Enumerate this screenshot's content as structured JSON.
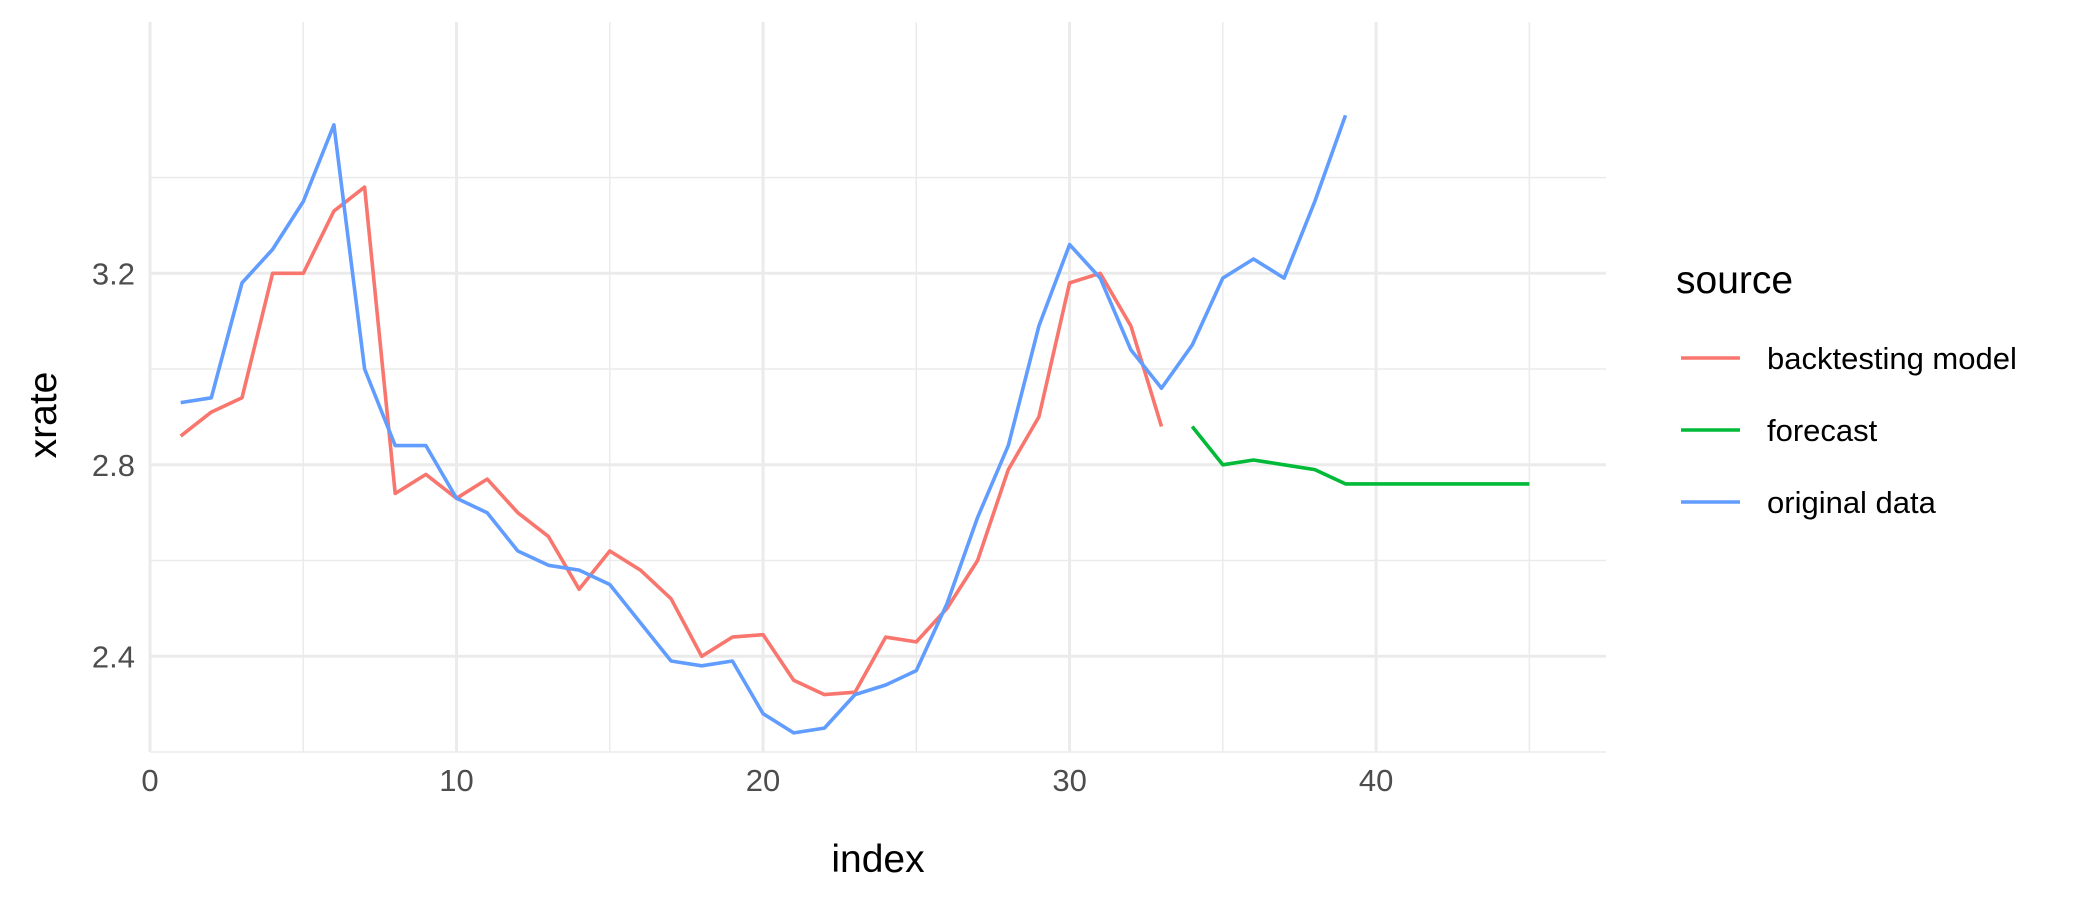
{
  "chart_data": {
    "type": "line",
    "xlabel": "index",
    "ylabel": "xrate",
    "xlim": [
      0,
      47.5
    ],
    "ylim": [
      2.2,
      3.725
    ],
    "x_ticks": [
      0,
      10,
      20,
      30,
      40
    ],
    "y_ticks": [
      2.4,
      2.8,
      3.2
    ],
    "x_ticks_labels": [
      "0",
      "10",
      "20",
      "30",
      "40"
    ],
    "y_ticks_labels": [
      "2.4",
      "2.8",
      "3.2"
    ],
    "grid": true,
    "legend": {
      "title": "source",
      "position": "right"
    },
    "series": [
      {
        "name": "backtesting model",
        "color": "#F8766D",
        "x": [
          1,
          2,
          3,
          4,
          5,
          6,
          7,
          8,
          9,
          10,
          11,
          12,
          13,
          14,
          15,
          16,
          17,
          18,
          19,
          20,
          21,
          22,
          23,
          24,
          25,
          26,
          27,
          28,
          29,
          30,
          31,
          32,
          33
        ],
        "values": [
          2.86,
          2.91,
          2.94,
          3.2,
          3.2,
          3.33,
          3.38,
          2.74,
          2.78,
          2.73,
          2.77,
          2.7,
          2.65,
          2.54,
          2.62,
          2.58,
          2.52,
          2.4,
          2.44,
          2.445,
          2.35,
          2.32,
          2.325,
          2.44,
          2.43,
          2.5,
          2.6,
          2.79,
          2.9,
          3.18,
          3.2,
          3.09,
          2.88
        ]
      },
      {
        "name": "forecast",
        "color": "#00BA38",
        "x": [
          34,
          35,
          36,
          37,
          38,
          39,
          40,
          41,
          42,
          43,
          44,
          45
        ],
        "values": [
          2.88,
          2.8,
          2.81,
          2.8,
          2.79,
          2.76,
          2.76,
          2.76,
          2.76,
          2.76,
          2.76,
          2.76
        ]
      },
      {
        "name": "original data",
        "color": "#619CFF",
        "x": [
          1,
          2,
          3,
          4,
          5,
          6,
          7,
          8,
          9,
          10,
          11,
          12,
          13,
          14,
          15,
          16,
          17,
          18,
          19,
          20,
          21,
          22,
          23,
          24,
          25,
          26,
          27,
          28,
          29,
          30,
          31,
          32,
          33,
          34,
          35,
          36,
          37,
          38,
          39
        ],
        "values": [
          2.93,
          2.94,
          3.18,
          3.25,
          3.35,
          3.51,
          3.0,
          2.84,
          2.84,
          2.73,
          2.7,
          2.62,
          2.59,
          2.58,
          2.55,
          2.47,
          2.39,
          2.38,
          2.39,
          2.28,
          2.24,
          2.25,
          2.32,
          2.34,
          2.37,
          2.51,
          2.69,
          2.84,
          3.09,
          3.26,
          3.19,
          3.04,
          2.96,
          3.05,
          3.19,
          3.23,
          3.19,
          3.35,
          3.53
        ]
      }
    ]
  }
}
